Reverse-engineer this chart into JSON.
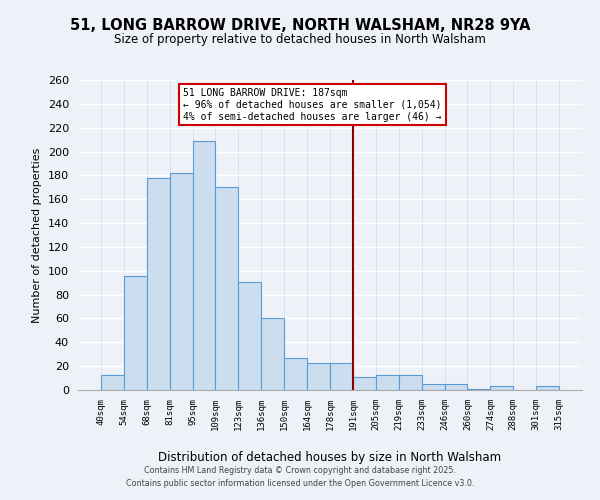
{
  "title": "51, LONG BARROW DRIVE, NORTH WALSHAM, NR28 9YA",
  "subtitle": "Size of property relative to detached houses in North Walsham",
  "xlabel": "Distribution of detached houses by size in North Walsham",
  "ylabel": "Number of detached properties",
  "bin_labels": [
    "40sqm",
    "54sqm",
    "68sqm",
    "81sqm",
    "95sqm",
    "109sqm",
    "123sqm",
    "136sqm",
    "150sqm",
    "164sqm",
    "178sqm",
    "191sqm",
    "205sqm",
    "219sqm",
    "233sqm",
    "246sqm",
    "260sqm",
    "274sqm",
    "288sqm",
    "301sqm",
    "315sqm"
  ],
  "bar_heights": [
    13,
    96,
    178,
    182,
    209,
    170,
    91,
    60,
    27,
    23,
    23,
    11,
    13,
    13,
    5,
    5,
    1,
    3,
    0,
    3
  ],
  "bar_color": "#ccddf0",
  "bar_edge_color": "#5b9bd5",
  "ylim": [
    0,
    260
  ],
  "yticks": [
    0,
    20,
    40,
    60,
    80,
    100,
    120,
    140,
    160,
    180,
    200,
    220,
    240,
    260
  ],
  "vline_color": "#8b0000",
  "annotation_title": "51 LONG BARROW DRIVE: 187sqm",
  "annotation_line1": "← 96% of detached houses are smaller (1,054)",
  "annotation_line2": "4% of semi-detached houses are larger (46) →",
  "footer1": "Contains HM Land Registry data © Crown copyright and database right 2025.",
  "footer2": "Contains public sector information licensed under the Open Government Licence v3.0.",
  "bg_color": "#eef2f8",
  "grid_color": "#d0d8e8",
  "spine_color": "#aaaaaa"
}
